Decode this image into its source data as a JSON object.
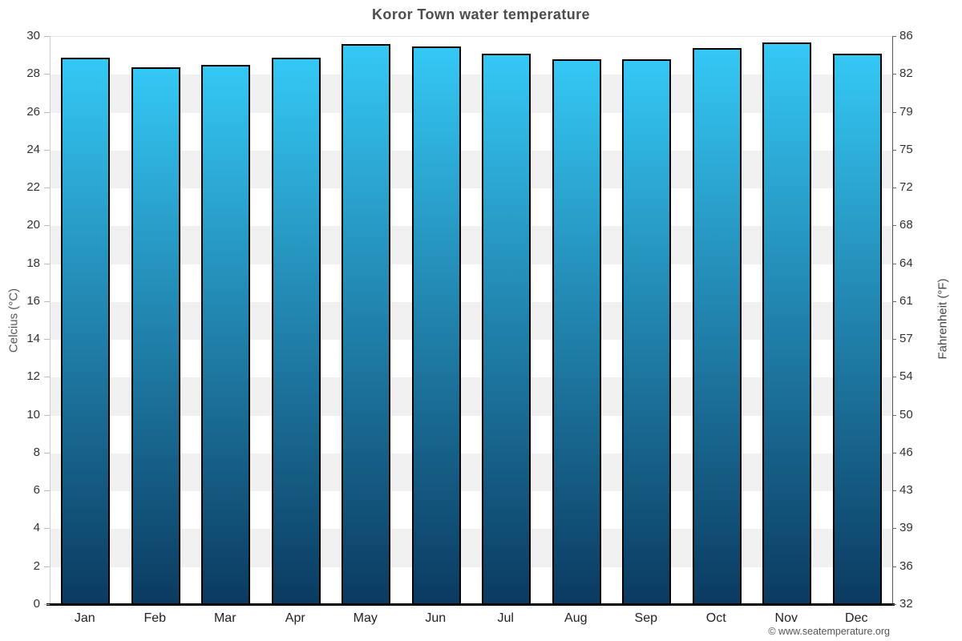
{
  "title": "Koror Town water temperature",
  "footer": {
    "copyright": "© www.seatemperature.org"
  },
  "chart_data": {
    "type": "bar",
    "title": "Koror Town water temperature",
    "categories": [
      "Jan",
      "Feb",
      "Mar",
      "Apr",
      "May",
      "Jun",
      "Jul",
      "Aug",
      "Sep",
      "Oct",
      "Nov",
      "Dec"
    ],
    "series": [
      {
        "name": "Water temperature (°C)",
        "values": [
          28.9,
          28.4,
          28.5,
          28.9,
          29.6,
          29.5,
          29.1,
          28.8,
          28.8,
          29.4,
          29.7,
          29.1
        ]
      }
    ],
    "xlabel": "",
    "ylabel_left": "Celcius (°C)",
    "ylabel_right": "Fahrenheit (°F)",
    "ylim_c": [
      0,
      30
    ],
    "yticks_c_top_down": [
      30,
      28,
      26,
      24,
      22,
      20,
      18,
      16,
      14,
      12,
      10,
      8,
      6,
      4,
      2,
      0
    ],
    "yticks_f_labels_top_down": [
      86,
      82,
      79,
      75,
      72,
      68,
      64,
      61,
      57,
      54,
      50,
      46,
      43,
      39,
      36,
      32
    ],
    "legend_position": "none",
    "grid": "alternating-horizontal-bands",
    "colors": {
      "bar_gradient_top": "#35c8f5",
      "bar_gradient_bottom": "#0b3a60",
      "bar_border": "#000000",
      "band_gray": "#f0f0f0",
      "band_white": "#ffffff",
      "background": "#ffffff",
      "title_text": "#4d4d4d",
      "tick_text": "#333333"
    }
  }
}
